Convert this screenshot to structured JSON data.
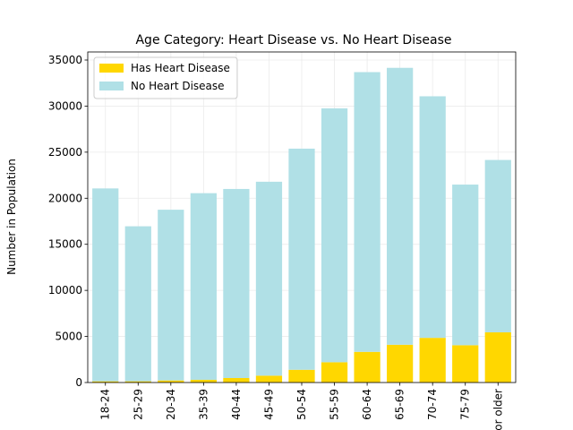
{
  "chart_data": {
    "type": "stacked-bar",
    "title": "Age Category: Heart Disease vs. No Heart Disease",
    "y_label": "Number in Population",
    "categories": [
      "18-24",
      "25-29",
      "20-34",
      "35-39",
      "40-44",
      "45-49",
      "50-54",
      "55-59",
      "60-64",
      "65-69",
      "70-74",
      "75-79",
      "80 or older"
    ],
    "series": [
      {
        "name": "Has Heart Disease",
        "color": "#ffd700",
        "values": [
          130,
          133,
          226,
          296,
          486,
          744,
          1383,
          2202,
          3327,
          4101,
          4847,
          4049,
          5449
        ]
      },
      {
        "name": "No Heart Disease",
        "color": "#b0e0e6",
        "values": [
          20934,
          16822,
          18527,
          20254,
          20520,
          21047,
          23999,
          27555,
          30359,
          30050,
          26218,
          17433,
          18704
        ]
      }
    ],
    "ylim": [
      0,
      35875
    ],
    "yticks": [
      0,
      5000,
      10000,
      15000,
      20000,
      25000,
      30000,
      35000
    ],
    "grid": true,
    "legend": "upper-left"
  }
}
